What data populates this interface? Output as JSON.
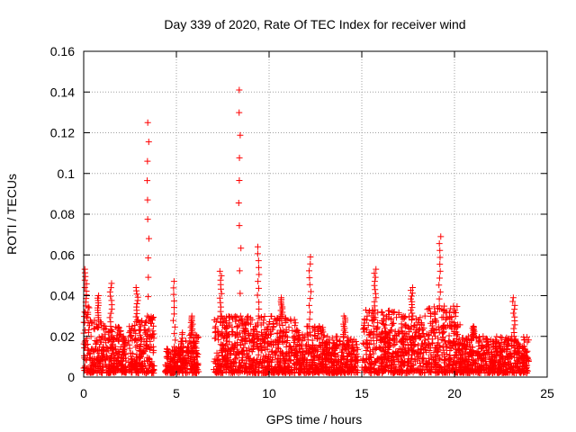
{
  "chart_data": {
    "type": "scatter",
    "title": "Day 339 of 2020, Rate Of TEC Index for receiver wind",
    "xlabel": "GPS time / hours",
    "ylabel": "ROTI / TECUs",
    "xlim": [
      0,
      25
    ],
    "ylim": [
      0,
      0.16
    ],
    "x_ticks": [
      0,
      5,
      10,
      15,
      20,
      25
    ],
    "y_ticks": [
      0,
      0.02,
      0.04,
      0.06,
      0.08,
      0.1,
      0.12,
      0.14,
      0.16
    ],
    "x_tick_labels": [
      "0",
      "5",
      "10",
      "15",
      "20",
      "25"
    ],
    "y_tick_labels": [
      "0",
      "0.02",
      "0.04",
      "0.06",
      "0.08",
      "0.1",
      "0.12",
      "0.14",
      "0.16"
    ],
    "grid": true,
    "marker": "+",
    "marker_color": "#ff0000",
    "series": [
      {
        "name": "ROTI",
        "clusters": [
          {
            "t_start": 0.0,
            "t_end": 0.3,
            "typical_max": 0.035,
            "peak": 0.053
          },
          {
            "t_start": 0.3,
            "t_end": 1.1,
            "typical_max": 0.028,
            "peak": 0.04
          },
          {
            "t_start": 1.1,
            "t_end": 2.0,
            "typical_max": 0.025,
            "peak": 0.046
          },
          {
            "t_start": 2.0,
            "t_end": 2.3,
            "typical_max": 0.015,
            "peak": 0.02
          },
          {
            "t_start": 2.4,
            "t_end": 3.3,
            "typical_max": 0.028,
            "peak": 0.044
          },
          {
            "t_start": 3.3,
            "t_end": 3.8,
            "typical_max": 0.03,
            "peak": 0.125
          },
          {
            "t_start": 4.4,
            "t_end": 5.2,
            "typical_max": 0.015,
            "peak": 0.047
          },
          {
            "t_start": 5.2,
            "t_end": 6.2,
            "typical_max": 0.022,
            "peak": 0.03
          },
          {
            "t_start": 7.0,
            "t_end": 8.0,
            "typical_max": 0.03,
            "peak": 0.052
          },
          {
            "t_start": 8.0,
            "t_end": 9.0,
            "typical_max": 0.03,
            "peak": 0.141
          },
          {
            "t_start": 9.0,
            "t_end": 10.0,
            "typical_max": 0.03,
            "peak": 0.064
          },
          {
            "t_start": 10.0,
            "t_end": 11.5,
            "typical_max": 0.03,
            "peak": 0.039
          },
          {
            "t_start": 11.5,
            "t_end": 13.0,
            "typical_max": 0.025,
            "peak": 0.059
          },
          {
            "t_start": 13.0,
            "t_end": 14.8,
            "typical_max": 0.02,
            "peak": 0.03
          },
          {
            "t_start": 15.0,
            "t_end": 17.0,
            "typical_max": 0.033,
            "peak": 0.053
          },
          {
            "t_start": 17.0,
            "t_end": 18.5,
            "typical_max": 0.03,
            "peak": 0.044
          },
          {
            "t_start": 18.5,
            "t_end": 20.3,
            "typical_max": 0.035,
            "peak": 0.069
          },
          {
            "t_start": 20.3,
            "t_end": 22.0,
            "typical_max": 0.02,
            "peak": 0.025
          },
          {
            "t_start": 22.0,
            "t_end": 24.0,
            "typical_max": 0.02,
            "peak": 0.039
          }
        ]
      }
    ]
  }
}
